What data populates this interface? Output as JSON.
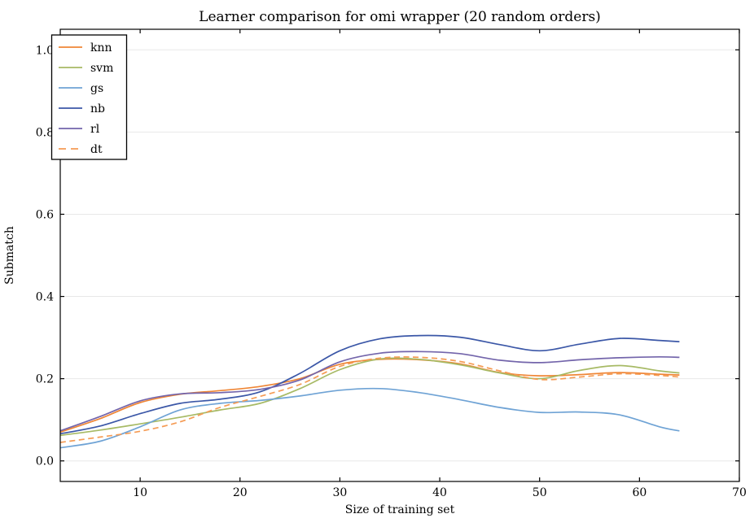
{
  "title": "Learner comparison for omi wrapper (20 random orders)",
  "axes": {
    "xlabel": "Size of training set",
    "ylabel": "Submatch",
    "xtick_labels": [
      "10",
      "20",
      "30",
      "40",
      "50",
      "60",
      "70"
    ],
    "ytick_labels": [
      "0.0",
      "0.2",
      "0.4",
      "0.6",
      "0.8",
      "1.0"
    ]
  },
  "legend": {
    "position": "upper left",
    "entries": [
      "knn",
      "svm",
      "gs",
      "nb",
      "rl",
      "dt"
    ]
  },
  "style": {
    "grid_color": "#e8e8e8",
    "spine_color": "#000000",
    "background": "#ffffff"
  },
  "chart_data": {
    "type": "line",
    "title": "Learner comparison for omi wrapper (20 random orders)",
    "xlabel": "Size of training set",
    "ylabel": "Submatch",
    "xlim": [
      2,
      70
    ],
    "ylim": [
      -0.05,
      1.05
    ],
    "grid": "horizontal",
    "legend_position": "upper left",
    "xticks": [
      "10",
      "20",
      "30",
      "40",
      "50",
      "60",
      "70"
    ],
    "yticks": [
      "0.0",
      "0.2",
      "0.4",
      "0.6",
      "0.8",
      "1.0"
    ],
    "x": [
      2,
      6,
      10,
      14,
      18,
      22,
      26,
      30,
      34,
      38,
      42,
      46,
      50,
      54,
      58,
      62,
      64
    ],
    "series": [
      {
        "name": "knn",
        "color": "#ef8636",
        "style": "solid",
        "values": [
          0.07,
          0.103,
          0.142,
          0.162,
          0.171,
          0.181,
          0.2,
          0.235,
          0.247,
          0.246,
          0.236,
          0.215,
          0.207,
          0.21,
          0.215,
          0.211,
          0.209
        ]
      },
      {
        "name": "svm",
        "color": "#a7ba65",
        "style": "solid",
        "values": [
          0.062,
          0.075,
          0.09,
          0.106,
          0.124,
          0.14,
          0.176,
          0.222,
          0.248,
          0.247,
          0.234,
          0.214,
          0.2,
          0.22,
          0.232,
          0.219,
          0.214
        ]
      },
      {
        "name": "gs",
        "color": "#6fa3d5",
        "style": "solid",
        "values": [
          0.032,
          0.048,
          0.083,
          0.124,
          0.14,
          0.147,
          0.158,
          0.172,
          0.176,
          0.166,
          0.149,
          0.13,
          0.118,
          0.119,
          0.112,
          0.083,
          0.073
        ]
      },
      {
        "name": "nb",
        "color": "#3b57a7",
        "style": "solid",
        "values": [
          0.066,
          0.085,
          0.115,
          0.14,
          0.15,
          0.168,
          0.213,
          0.268,
          0.297,
          0.305,
          0.301,
          0.283,
          0.268,
          0.284,
          0.298,
          0.293,
          0.29
        ]
      },
      {
        "name": "rl",
        "color": "#7365ab",
        "style": "solid",
        "values": [
          0.073,
          0.108,
          0.146,
          0.163,
          0.166,
          0.174,
          0.197,
          0.241,
          0.262,
          0.266,
          0.261,
          0.245,
          0.239,
          0.246,
          0.251,
          0.253,
          0.252
        ]
      },
      {
        "name": "dt",
        "color": "#f59b54",
        "style": "dashed",
        "values": [
          0.045,
          0.058,
          0.072,
          0.095,
          0.13,
          0.157,
          0.186,
          0.23,
          0.25,
          0.252,
          0.242,
          0.219,
          0.198,
          0.204,
          0.212,
          0.208,
          0.204
        ]
      }
    ]
  }
}
